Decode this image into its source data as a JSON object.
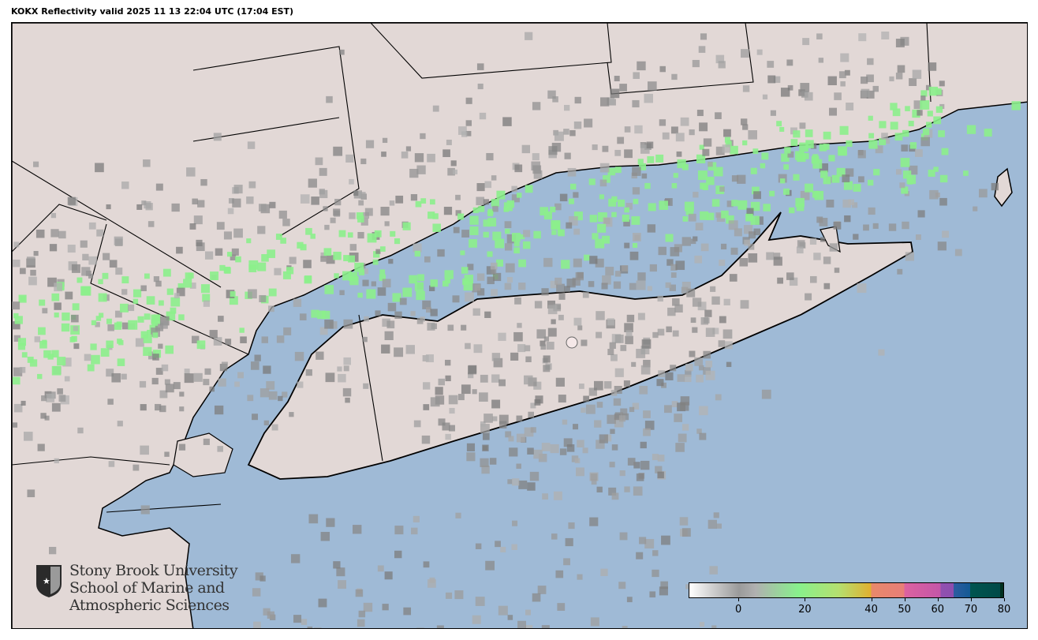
{
  "title": "KOKX Reflectivity valid 2025 11 13 22:04 UTC (17:04 EST)",
  "colors": {
    "ocean": "#9fbad6",
    "land": "#e2d8d6",
    "echo_light": "#8cf08c",
    "echo_gray": "#8c8c8c",
    "border": "#000000"
  },
  "colorbar": {
    "min": -15,
    "max": 80,
    "ticks": [
      {
        "value": 0,
        "label": "0"
      },
      {
        "value": 20,
        "label": "20"
      },
      {
        "value": 40,
        "label": "40"
      },
      {
        "value": 50,
        "label": "50"
      },
      {
        "value": 60,
        "label": "60"
      },
      {
        "value": 70,
        "label": "70"
      },
      {
        "value": 80,
        "label": "80"
      }
    ]
  },
  "logo": {
    "line1": "Stony Brook University",
    "line2": "School of Marine and",
    "line3": "Atmospheric Sciences"
  }
}
